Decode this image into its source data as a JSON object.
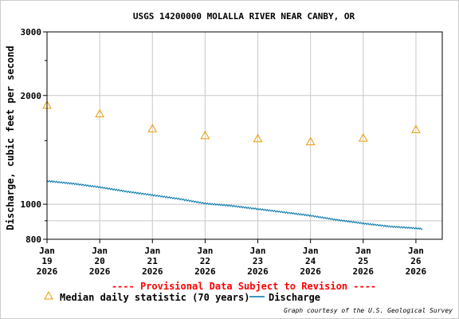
{
  "chart_data": {
    "type": "line",
    "title": "USGS 14200000 MOLALLA RIVER NEAR CANBY, OR",
    "ylabel": "Discharge, cubic feet per second",
    "xlabel": "",
    "yscale": "log",
    "ylim": [
      800,
      3000
    ],
    "yticks": [
      {
        "value": 800,
        "label": "800"
      },
      {
        "value": 1000,
        "label": "1000"
      },
      {
        "value": 2000,
        "label": "2000"
      },
      {
        "value": 3000,
        "label": "3000"
      }
    ],
    "xlim": [
      "2026-01-19T00:00",
      "2026-01-26T12:00"
    ],
    "xticks": [
      {
        "date": "2026-01-19",
        "mon": "Jan",
        "day": "19",
        "year": "2026"
      },
      {
        "date": "2026-01-20",
        "mon": "Jan",
        "day": "20",
        "year": "2026"
      },
      {
        "date": "2026-01-21",
        "mon": "Jan",
        "day": "21",
        "year": "2026"
      },
      {
        "date": "2026-01-22",
        "mon": "Jan",
        "day": "22",
        "year": "2026"
      },
      {
        "date": "2026-01-23",
        "mon": "Jan",
        "day": "23",
        "year": "2026"
      },
      {
        "date": "2026-01-24",
        "mon": "Jan",
        "day": "24",
        "year": "2026"
      },
      {
        "date": "2026-01-25",
        "mon": "Jan",
        "day": "25",
        "year": "2026"
      },
      {
        "date": "2026-01-26",
        "mon": "Jan",
        "day": "26",
        "year": "2026"
      }
    ],
    "grid": true,
    "series": [
      {
        "name": "Discharge",
        "kind": "line",
        "color": "#0074a8",
        "points": [
          {
            "x": "2026-01-19T00:00",
            "y": 1160
          },
          {
            "x": "2026-01-19T12:00",
            "y": 1140
          },
          {
            "x": "2026-01-20T00:00",
            "y": 1115
          },
          {
            "x": "2026-01-20T12:00",
            "y": 1085
          },
          {
            "x": "2026-01-21T00:00",
            "y": 1060
          },
          {
            "x": "2026-01-21T12:00",
            "y": 1035
          },
          {
            "x": "2026-01-22T00:00",
            "y": 1005
          },
          {
            "x": "2026-01-22T12:00",
            "y": 990
          },
          {
            "x": "2026-01-23T00:00",
            "y": 970
          },
          {
            "x": "2026-01-23T12:00",
            "y": 950
          },
          {
            "x": "2026-01-24T00:00",
            "y": 930
          },
          {
            "x": "2026-01-24T12:00",
            "y": 905
          },
          {
            "x": "2026-01-25T00:00",
            "y": 885
          },
          {
            "x": "2026-01-25T12:00",
            "y": 868
          },
          {
            "x": "2026-01-26T00:00",
            "y": 858
          },
          {
            "x": "2026-01-26T03:00",
            "y": 855
          }
        ]
      },
      {
        "name": "Median daily statistic (70 years)",
        "kind": "marker",
        "marker": "triangle",
        "color": "#e89a00",
        "points": [
          {
            "x": "2026-01-19T00:00",
            "y": 1880
          },
          {
            "x": "2026-01-20T00:00",
            "y": 1780
          },
          {
            "x": "2026-01-21T00:00",
            "y": 1620
          },
          {
            "x": "2026-01-22T00:00",
            "y": 1550
          },
          {
            "x": "2026-01-23T00:00",
            "y": 1520
          },
          {
            "x": "2026-01-24T00:00",
            "y": 1490
          },
          {
            "x": "2026-01-25T00:00",
            "y": 1525
          },
          {
            "x": "2026-01-26T00:00",
            "y": 1610
          }
        ]
      }
    ],
    "provisional_note": "---- Provisional Data Subject to Revision ----",
    "legend": {
      "placement": "bottom",
      "median_label": "Median daily statistic (70 years)",
      "discharge_label": "Discharge"
    },
    "credit": "Graph courtesy of the U.S. Geological Survey"
  }
}
